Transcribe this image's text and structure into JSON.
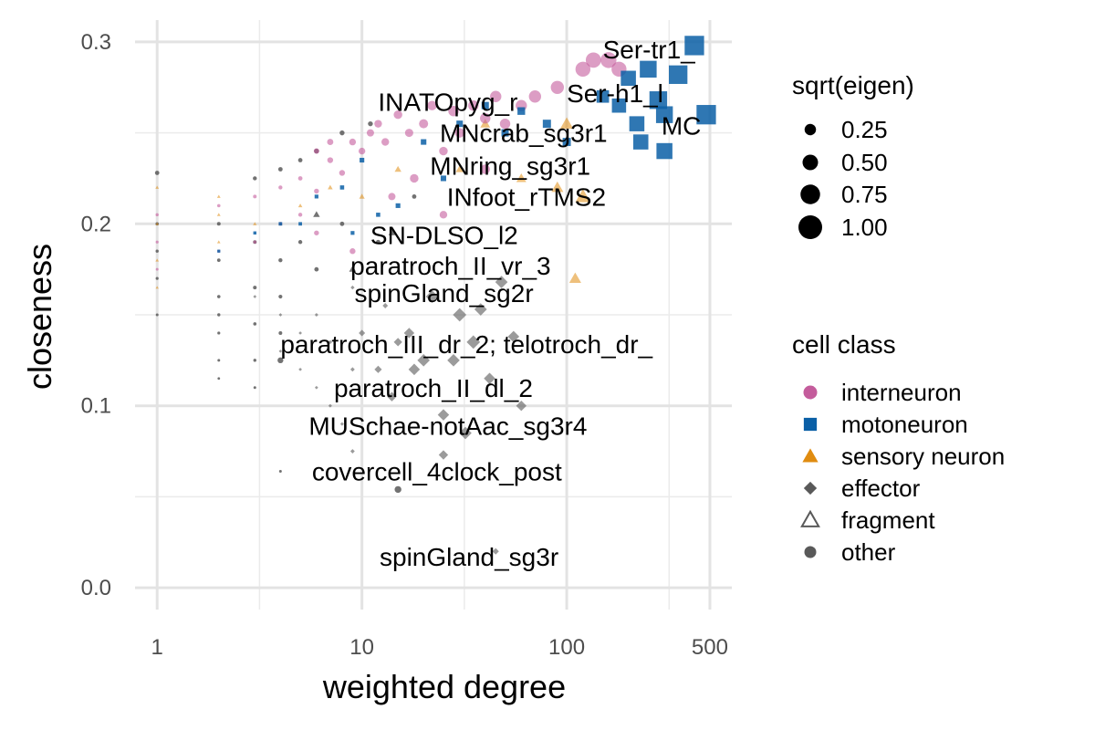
{
  "chart_data": {
    "type": "scatter",
    "xlabel": "weighted degree",
    "ylabel": "closeness",
    "xscale": "log10",
    "xlim": [
      0.78,
      640
    ],
    "ylim": [
      -0.012,
      0.312
    ],
    "xticks": [
      1,
      10,
      100,
      500
    ],
    "xtick_labels": [
      "1",
      "10",
      "100",
      "500"
    ],
    "xminor_grid": [
      3.162,
      31.62,
      316.2
    ],
    "yticks": [
      0.0,
      0.1,
      0.2,
      0.3
    ],
    "ytick_labels": [
      "0.0",
      "0.1",
      "0.2",
      "0.3"
    ],
    "yminor_grid": [
      0.05,
      0.15,
      0.25
    ],
    "grid": true,
    "legend_position": "right",
    "size_legend": {
      "title": "sqrt(eigen)",
      "entries": [
        {
          "label": "0.25",
          "value": 0.25
        },
        {
          "label": "0.50",
          "value": 0.5
        },
        {
          "label": "0.75",
          "value": 0.75
        },
        {
          "label": "1.00",
          "value": 1.0
        }
      ]
    },
    "class_legend": {
      "title": "cell class",
      "entries": [
        {
          "label": "interneuron",
          "shape": "circle",
          "color": "#c45c9c"
        },
        {
          "label": "motoneuron",
          "shape": "square",
          "color": "#0a5fa6"
        },
        {
          "label": "sensory neuron",
          "shape": "triangle",
          "color": "#e08c10"
        },
        {
          "label": "effector",
          "shape": "diamond",
          "color": "#595959"
        },
        {
          "label": "fragment",
          "shape": "triangle-open",
          "color": "#595959"
        },
        {
          "label": "other",
          "shape": "circle",
          "color": "#595959"
        }
      ]
    },
    "annotations": [
      {
        "text": "Ser-tr1_",
        "x": 150,
        "y": 0.296
      },
      {
        "text": "Ser-h1_l",
        "x": 100,
        "y": 0.272
      },
      {
        "text": "MC",
        "x": 290,
        "y": 0.254
      },
      {
        "text": "INATOpyg_r",
        "x": 12,
        "y": 0.267
      },
      {
        "text": "MNcrab_sg3r1",
        "x": 24,
        "y": 0.25
      },
      {
        "text": "MNring_sg3r1",
        "x": 21.5,
        "y": 0.232
      },
      {
        "text": "INfoot_rTMS2",
        "x": 26,
        "y": 0.215
      },
      {
        "text": "SN-DLSO_l2",
        "x": 11,
        "y": 0.194
      },
      {
        "text": "paratroch_II_vr_3",
        "x": 8.8,
        "y": 0.177
      },
      {
        "text": "spinGland_sg2r",
        "x": 9.2,
        "y": 0.162
      },
      {
        "text": "paratroch_III_dr_2; telotroch_dr_",
        "x": 4.0,
        "y": 0.134
      },
      {
        "text": "paratroch_II_dl_2",
        "x": 7.3,
        "y": 0.11
      },
      {
        "text": "MUSchae-notAac_sg3r4",
        "x": 5.5,
        "y": 0.089
      },
      {
        "text": "covercell_4clock_post",
        "x": 5.7,
        "y": 0.064
      },
      {
        "text": "spinGland_sg3r",
        "x": 12.2,
        "y": 0.017
      }
    ],
    "series": [
      {
        "name": "interneuron",
        "shape": "circle",
        "color": "#c45c9c",
        "points": [
          [
            1,
            0.205,
            0.05
          ],
          [
            1,
            0.19,
            0.04
          ],
          [
            1,
            0.175,
            0.03
          ],
          [
            2,
            0.21,
            0.06
          ],
          [
            2,
            0.185,
            0.05
          ],
          [
            3,
            0.215,
            0.08
          ],
          [
            3,
            0.19,
            0.06
          ],
          [
            4,
            0.22,
            0.1
          ],
          [
            4,
            0.2,
            0.08
          ],
          [
            5,
            0.225,
            0.12
          ],
          [
            5,
            0.205,
            0.1
          ],
          [
            6,
            0.24,
            0.18
          ],
          [
            6,
            0.218,
            0.15
          ],
          [
            7,
            0.235,
            0.2
          ],
          [
            7,
            0.245,
            0.22
          ],
          [
            8,
            0.228,
            0.2
          ],
          [
            9,
            0.245,
            0.25
          ],
          [
            10,
            0.24,
            0.25
          ],
          [
            11,
            0.25,
            0.28
          ],
          [
            12,
            0.255,
            0.3
          ],
          [
            13,
            0.245,
            0.3
          ],
          [
            15,
            0.26,
            0.35
          ],
          [
            17,
            0.25,
            0.33
          ],
          [
            20,
            0.255,
            0.38
          ],
          [
            22,
            0.265,
            0.4
          ],
          [
            25,
            0.24,
            0.35
          ],
          [
            28,
            0.262,
            0.45
          ],
          [
            30,
            0.25,
            0.4
          ],
          [
            35,
            0.265,
            0.45
          ],
          [
            40,
            0.258,
            0.45
          ],
          [
            45,
            0.27,
            0.5
          ],
          [
            50,
            0.255,
            0.45
          ],
          [
            60,
            0.265,
            0.5
          ],
          [
            70,
            0.27,
            0.55
          ],
          [
            90,
            0.275,
            0.6
          ],
          [
            120,
            0.285,
            0.7
          ],
          [
            135,
            0.29,
            0.72
          ],
          [
            160,
            0.29,
            0.75
          ],
          [
            180,
            0.285,
            0.7
          ],
          [
            40,
            0.23,
            0.4
          ],
          [
            18,
            0.225,
            0.35
          ],
          [
            14,
            0.215,
            0.28
          ],
          [
            25,
            0.205,
            0.3
          ],
          [
            9,
            0.185,
            0.2
          ],
          [
            6,
            0.195,
            0.15
          ]
        ]
      },
      {
        "name": "motoneuron",
        "shape": "square",
        "color": "#0a5fa6",
        "points": [
          [
            2,
            0.185,
            0.05
          ],
          [
            3,
            0.195,
            0.06
          ],
          [
            4,
            0.2,
            0.08
          ],
          [
            5,
            0.2,
            0.08
          ],
          [
            6,
            0.215,
            0.1
          ],
          [
            8,
            0.22,
            0.12
          ],
          [
            9,
            0.195,
            0.1
          ],
          [
            10,
            0.235,
            0.15
          ],
          [
            12,
            0.205,
            0.12
          ],
          [
            15,
            0.21,
            0.15
          ],
          [
            20,
            0.245,
            0.2
          ],
          [
            25,
            0.225,
            0.2
          ],
          [
            30,
            0.255,
            0.25
          ],
          [
            40,
            0.265,
            0.3
          ],
          [
            50,
            0.25,
            0.3
          ],
          [
            60,
            0.262,
            0.32
          ],
          [
            80,
            0.255,
            0.35
          ],
          [
            100,
            0.245,
            0.35
          ],
          [
            150,
            0.27,
            0.6
          ],
          [
            180,
            0.265,
            0.7
          ],
          [
            200,
            0.28,
            0.75
          ],
          [
            220,
            0.255,
            0.75
          ],
          [
            250,
            0.285,
            0.85
          ],
          [
            280,
            0.268,
            0.9
          ],
          [
            300,
            0.24,
            0.8
          ],
          [
            350,
            0.282,
            0.95
          ],
          [
            420,
            0.298,
            1.0
          ],
          [
            480,
            0.26,
            1.0
          ],
          [
            300,
            0.26,
            0.85
          ],
          [
            230,
            0.245,
            0.75
          ]
        ]
      },
      {
        "name": "sensory neuron",
        "shape": "triangle",
        "color": "#e08c10",
        "points": [
          [
            1,
            0.22,
            0.05
          ],
          [
            1,
            0.2,
            0.04
          ],
          [
            1,
            0.18,
            0.04
          ],
          [
            1,
            0.165,
            0.03
          ],
          [
            2,
            0.215,
            0.05
          ],
          [
            2,
            0.205,
            0.05
          ],
          [
            2,
            0.19,
            0.04
          ],
          [
            3,
            0.2,
            0.06
          ],
          [
            4,
            0.2,
            0.07
          ],
          [
            5,
            0.21,
            0.08
          ],
          [
            7,
            0.22,
            0.12
          ],
          [
            10,
            0.215,
            0.15
          ],
          [
            15,
            0.23,
            0.2
          ],
          [
            30,
            0.23,
            0.25
          ],
          [
            60,
            0.225,
            0.35
          ],
          [
            90,
            0.22,
            0.45
          ],
          [
            120,
            0.215,
            0.6
          ],
          [
            110,
            0.17,
            0.45
          ],
          [
            100,
            0.255,
            0.5
          ],
          [
            40,
            0.255,
            0.35
          ]
        ]
      },
      {
        "name": "effector",
        "shape": "diamond",
        "color": "#595959",
        "points": [
          [
            3,
            0.16,
            0.05
          ],
          [
            4,
            0.15,
            0.05
          ],
          [
            4,
            0.13,
            0.04
          ],
          [
            5,
            0.14,
            0.05
          ],
          [
            5,
            0.12,
            0.05
          ],
          [
            6,
            0.11,
            0.05
          ],
          [
            6,
            0.15,
            0.06
          ],
          [
            7,
            0.135,
            0.08
          ],
          [
            7,
            0.1,
            0.06
          ],
          [
            8,
            0.09,
            0.06
          ],
          [
            9,
            0.12,
            0.1
          ],
          [
            9,
            0.165,
            0.08
          ],
          [
            10,
            0.14,
            0.2
          ],
          [
            12,
            0.12,
            0.25
          ],
          [
            13,
            0.155,
            0.15
          ],
          [
            14,
            0.105,
            0.35
          ],
          [
            15,
            0.135,
            0.3
          ],
          [
            17,
            0.14,
            0.4
          ],
          [
            18,
            0.12,
            0.45
          ],
          [
            20,
            0.125,
            0.5
          ],
          [
            22,
            0.16,
            0.5
          ],
          [
            25,
            0.095,
            0.45
          ],
          [
            28,
            0.125,
            0.5
          ],
          [
            30,
            0.15,
            0.55
          ],
          [
            32,
            0.085,
            0.5
          ],
          [
            35,
            0.135,
            0.55
          ],
          [
            38,
            0.153,
            0.5
          ],
          [
            42,
            0.115,
            0.45
          ],
          [
            48,
            0.168,
            0.5
          ],
          [
            55,
            0.138,
            0.45
          ],
          [
            60,
            0.1,
            0.4
          ],
          [
            25,
            0.073,
            0.35
          ],
          [
            45,
            0.02,
            0.2
          ],
          [
            9,
            0.075,
            0.1
          ]
        ]
      },
      {
        "name": "fragment",
        "shape": "triangle-open",
        "color": "#595959",
        "points": [
          [
            6,
            0.205,
            0.05
          ],
          [
            9,
            0.175,
            0.06
          ],
          [
            14,
            0.195,
            0.05
          ]
        ]
      },
      {
        "name": "other",
        "shape": "circle",
        "color": "#595959",
        "points": [
          [
            1,
            0.228,
            0.12
          ],
          [
            1,
            0.2,
            0.06
          ],
          [
            1,
            0.185,
            0.05
          ],
          [
            1,
            0.17,
            0.04
          ],
          [
            1,
            0.15,
            0.03
          ],
          [
            2,
            0.2,
            0.08
          ],
          [
            2,
            0.18,
            0.07
          ],
          [
            2,
            0.16,
            0.06
          ],
          [
            2,
            0.15,
            0.05
          ],
          [
            2,
            0.14,
            0.04
          ],
          [
            2,
            0.125,
            0.03
          ],
          [
            2,
            0.115,
            0.02
          ],
          [
            3,
            0.225,
            0.1
          ],
          [
            3,
            0.19,
            0.08
          ],
          [
            3,
            0.165,
            0.08
          ],
          [
            3,
            0.145,
            0.06
          ],
          [
            3,
            0.125,
            0.05
          ],
          [
            3,
            0.11,
            0.03
          ],
          [
            4,
            0.23,
            0.12
          ],
          [
            4,
            0.18,
            0.1
          ],
          [
            4,
            0.16,
            0.09
          ],
          [
            4,
            0.14,
            0.08
          ],
          [
            4,
            0.125,
            0.2
          ],
          [
            4,
            0.064,
            0.03
          ],
          [
            5,
            0.235,
            0.12
          ],
          [
            5,
            0.19,
            0.1
          ],
          [
            6,
            0.24,
            0.15
          ],
          [
            6,
            0.175,
            0.12
          ],
          [
            8,
            0.25,
            0.15
          ],
          [
            8,
            0.2,
            0.12
          ],
          [
            11,
            0.255,
            0.15
          ],
          [
            15,
            0.054,
            0.25
          ],
          [
            12,
            0.19,
            0.12
          ],
          [
            18,
            0.215,
            0.12
          ]
        ]
      }
    ]
  }
}
